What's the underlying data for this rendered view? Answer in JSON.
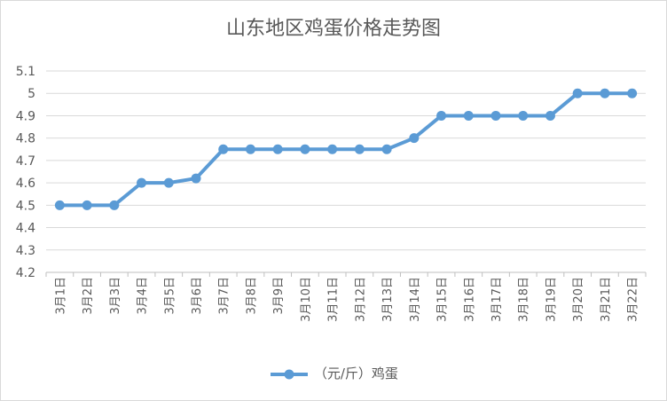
{
  "chart_data": {
    "type": "line",
    "title": "山东地区鸡蛋价格走势图",
    "categories": [
      "3月1日",
      "3月2日",
      "3月3日",
      "3月4日",
      "3月5日",
      "3月6日",
      "3月7日",
      "3月8日",
      "3月9日",
      "3月10日",
      "3月11日",
      "3月12日",
      "3月13日",
      "3月14日",
      "3月15日",
      "3月16日",
      "3月17日",
      "3月18日",
      "3月19日",
      "3月20日",
      "3月21日",
      "3月22日"
    ],
    "series": [
      {
        "name": "（元/斤）鸡蛋",
        "values": [
          4.5,
          4.5,
          4.5,
          4.6,
          4.6,
          4.62,
          4.75,
          4.75,
          4.75,
          4.75,
          4.75,
          4.75,
          4.75,
          4.8,
          4.9,
          4.9,
          4.9,
          4.9,
          4.9,
          5.0,
          5.0,
          5.0
        ]
      }
    ],
    "y_ticks": [
      "4.2",
      "4.3",
      "4.4",
      "4.5",
      "4.6",
      "4.7",
      "4.8",
      "4.9",
      "5",
      "5.1"
    ],
    "ylim": [
      4.2,
      5.1
    ],
    "grid": true,
    "legend": "bottom",
    "line_color": "#5b9bd5",
    "grid_color": "#d9d9d9"
  }
}
